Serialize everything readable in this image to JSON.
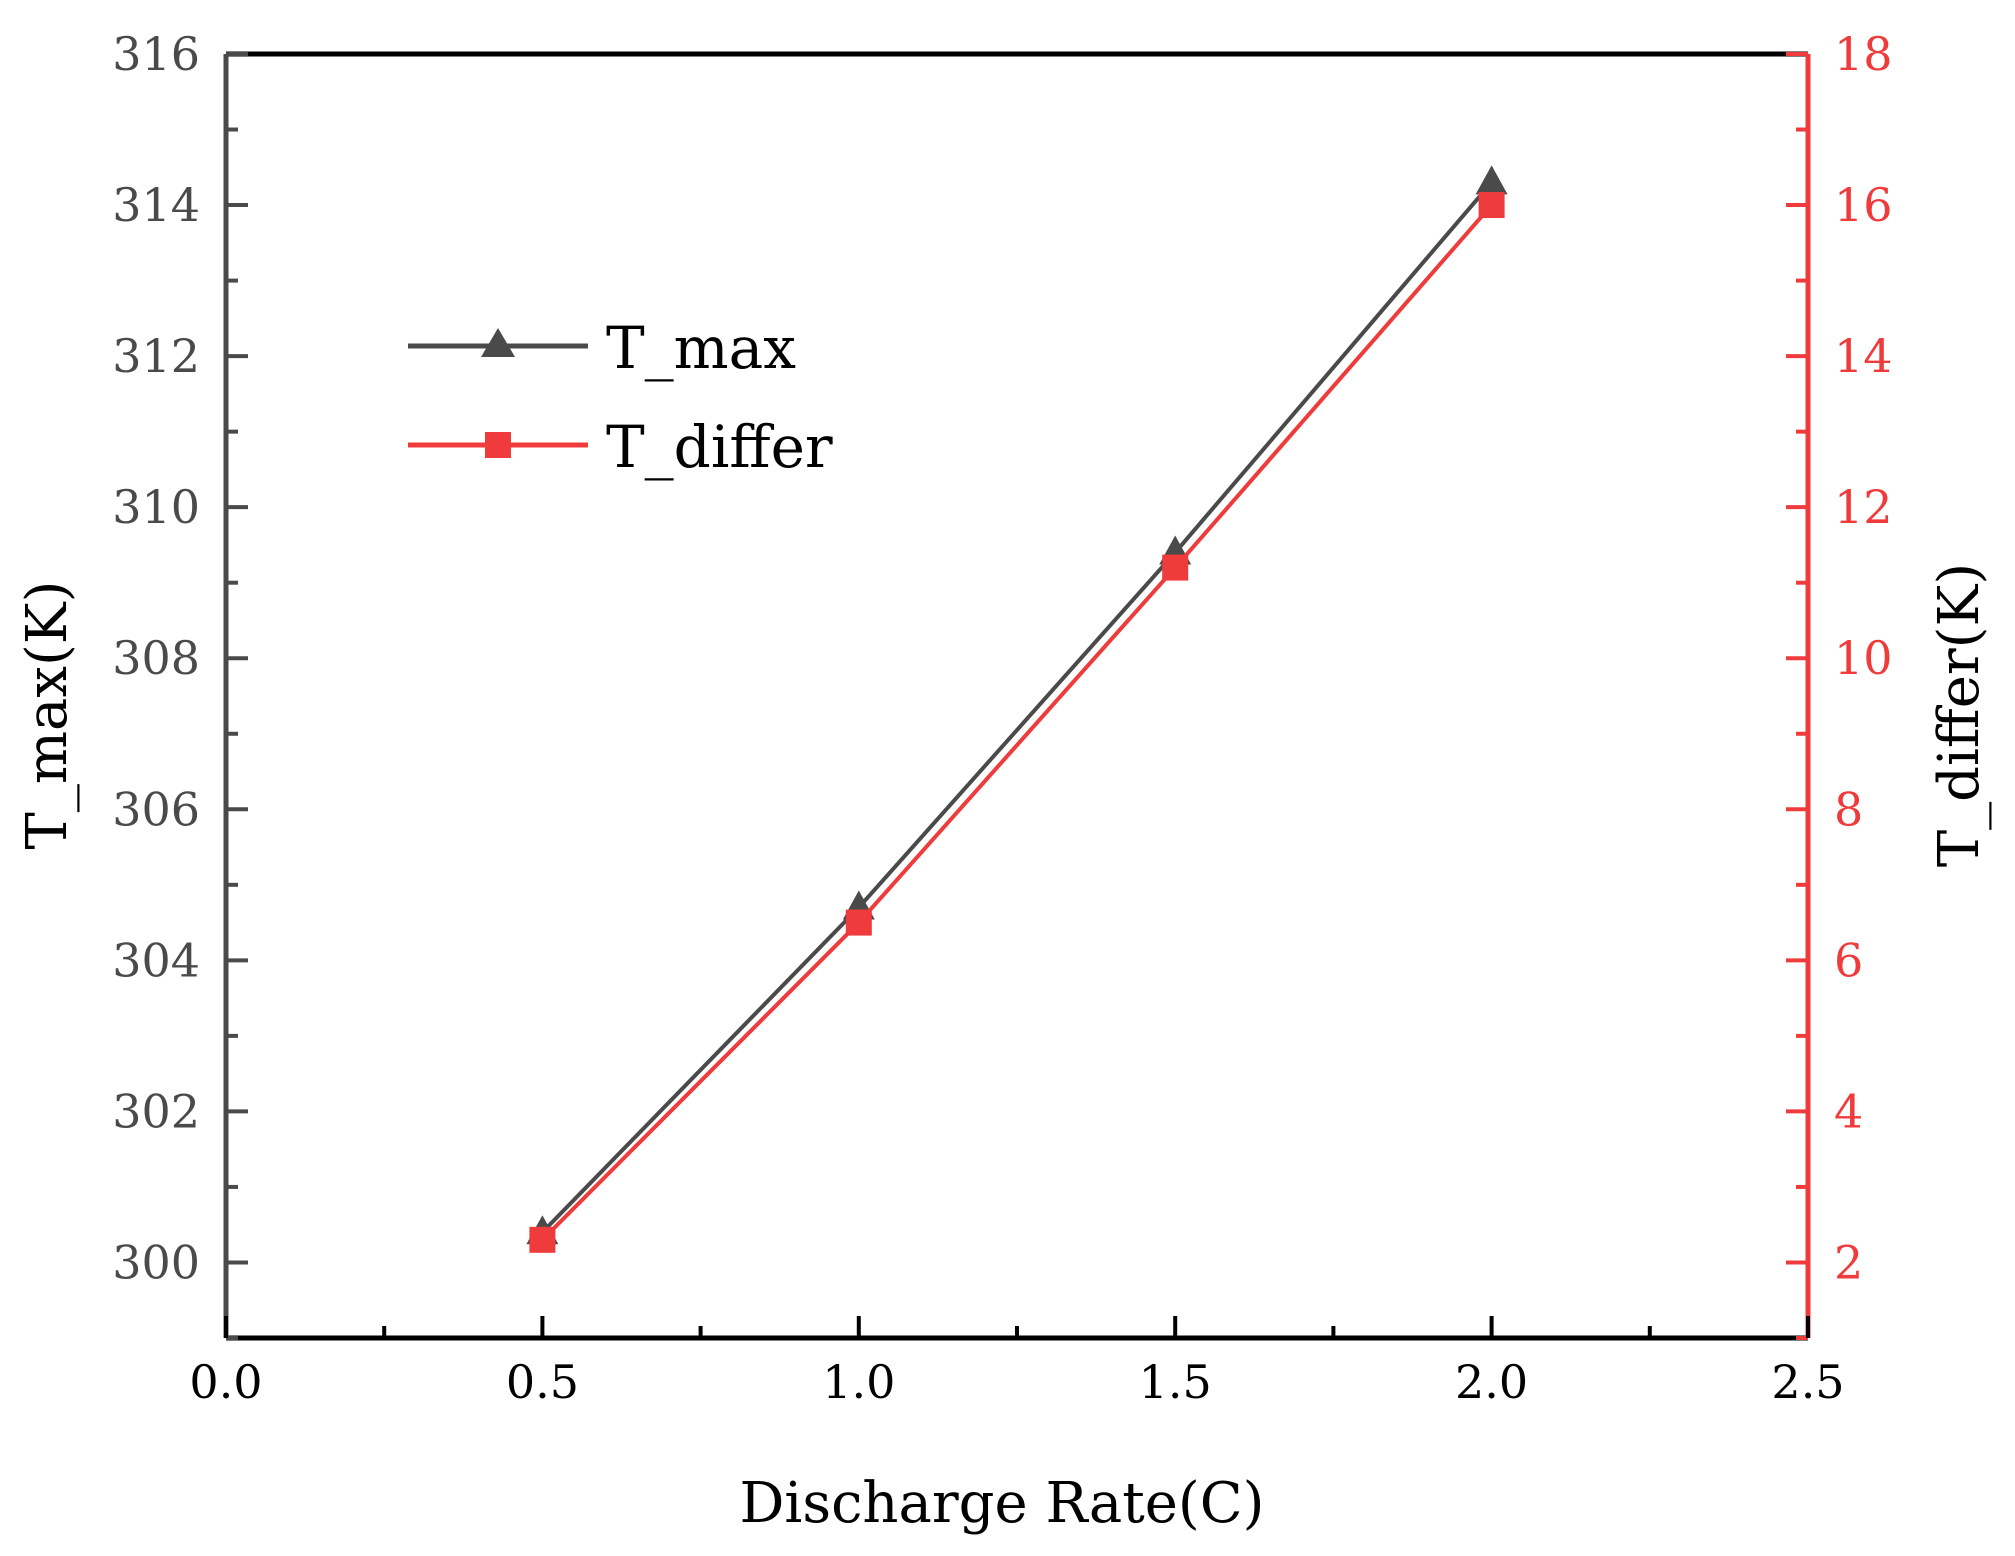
{
  "chart_data": {
    "type": "line",
    "title": "",
    "xlabel": "Discharge Rate(C)",
    "ylabel_left": "T_max(K)",
    "ylabel_right": "T_differ(K)",
    "xlim": [
      0.0,
      2.5
    ],
    "ylim_left": [
      299,
      316
    ],
    "ylim_right": [
      1,
      18
    ],
    "x_ticks": [
      "0.0",
      "0.5",
      "1.0",
      "1.5",
      "2.0",
      "2.5"
    ],
    "y_left_ticks": [
      "300",
      "302",
      "304",
      "306",
      "308",
      "310",
      "312",
      "314",
      "316"
    ],
    "y_right_ticks": [
      "2",
      "4",
      "6",
      "8",
      "10",
      "12",
      "14",
      "16",
      "18"
    ],
    "grid": false,
    "legend_position": "upper-left",
    "series": [
      {
        "name": "T_max",
        "axis": "left",
        "marker": "triangle",
        "color": "#4a4a4a",
        "x": [
          0.5,
          1.0,
          1.5,
          2.0
        ],
        "values": [
          300.4,
          304.7,
          309.4,
          314.3
        ]
      },
      {
        "name": "T_differ",
        "axis": "right",
        "marker": "square",
        "color": "#ef3b3b",
        "x": [
          0.5,
          1.0,
          1.5,
          2.0
        ],
        "values": [
          2.3,
          6.5,
          11.2,
          16.0
        ]
      }
    ],
    "colors": {
      "left_axis": "#4a4a4a",
      "right_axis": "#ef3b3b",
      "frame": "#000000"
    }
  }
}
